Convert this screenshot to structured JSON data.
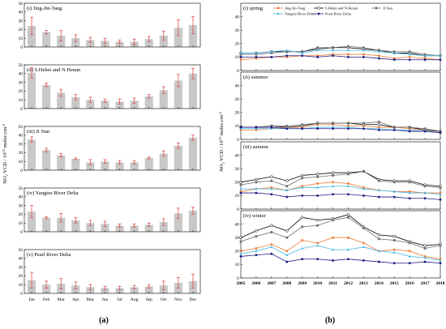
{
  "figure_labels": {
    "a": "(a)",
    "b": "(b)"
  },
  "chart_data": [
    {
      "type": "bar",
      "group": "a",
      "ylabel_parts": {
        "main": "NO",
        "sub": "2",
        "rest": " VCD / 10",
        "sup": "15",
        "unit": " molec.cm",
        "unit_sup": "-2"
      },
      "categories": [
        "Jan",
        "Feb",
        "Mar",
        "Apr",
        "May",
        "Jun",
        "Jul",
        "Aug",
        "Sep",
        "Oct",
        "Nov",
        "Dec"
      ],
      "ylim": [
        0,
        50
      ],
      "yticks": [
        "0",
        "10",
        "20",
        "30",
        "40",
        "50"
      ],
      "bar_color": "#c8c8c8",
      "error_color": "#e05050",
      "panels": [
        {
          "title": "(i) Jing-Jin-Tang",
          "values": [
            24,
            17,
            13,
            10,
            8,
            7,
            6,
            6,
            9,
            13,
            22,
            25
          ],
          "errors": [
            10,
            2,
            6,
            4,
            3,
            3,
            2,
            3,
            3,
            5,
            9,
            10
          ]
        },
        {
          "title": "(ii) S.Hebei and N.Henan",
          "values": [
            41,
            27,
            18,
            13,
            10,
            9,
            8,
            9,
            14,
            21,
            32,
            40
          ],
          "errors": [
            6,
            2,
            4,
            3,
            3,
            2,
            3,
            3,
            2,
            4,
            7,
            6
          ]
        },
        {
          "title": "(iii) Ji Nan",
          "values": [
            35,
            23,
            17,
            13,
            9,
            10,
            9,
            9,
            14,
            19,
            28,
            37
          ],
          "errors": [
            3,
            2,
            2,
            1,
            3,
            2,
            2,
            2,
            1,
            3,
            3,
            3
          ]
        },
        {
          "title": "(iv) Yangtze River Delta",
          "values": [
            23,
            16,
            16,
            13,
            10,
            9,
            7,
            7,
            8,
            11,
            21,
            24
          ],
          "errors": [
            7,
            1,
            5,
            3,
            3,
            3,
            2,
            2,
            2,
            4,
            6,
            4
          ]
        },
        {
          "title": "(v) Pearl River Delta",
          "values": [
            15,
            10,
            11,
            9,
            7,
            6,
            6,
            7,
            8,
            9,
            12,
            14
          ],
          "errors": [
            9,
            4,
            6,
            4,
            3,
            2,
            2,
            2,
            2,
            5,
            6,
            8
          ]
        }
      ]
    },
    {
      "type": "line",
      "group": "b",
      "ylabel_parts": {
        "main": "NO",
        "sub": "2",
        "rest": " VCD / 10",
        "sup": "15",
        "unit": " molec.cm",
        "unit_sup": "-2"
      },
      "x": [
        2005,
        2006,
        2007,
        2008,
        2009,
        2010,
        2011,
        2012,
        2013,
        2014,
        2015,
        2016,
        2017,
        2018
      ],
      "ylim": [
        0,
        50
      ],
      "yticks": [
        "0",
        "10",
        "20",
        "30",
        "40"
      ],
      "legend": [
        {
          "name": "Jing-Jin-Tang",
          "color": "#ef7b34",
          "marker": "circle"
        },
        {
          "name": "S.Hebei and N.Henan",
          "color": "#000000",
          "marker": "open-circle"
        },
        {
          "name": "Ji Nan",
          "color": "#707070",
          "marker": "square"
        },
        {
          "name": "Yangtze River Delta",
          "color": "#4ab8e8",
          "marker": "triangle"
        },
        {
          "name": "Pearl River Delta",
          "color": "#1a1a80",
          "marker": "circle"
        }
      ],
      "panels": [
        {
          "title": "(i) spring",
          "series": [
            {
              "name": "Jing-Jin-Tang",
              "values": [
                8,
                9,
                10,
                10,
                11,
                11,
                12,
                12,
                12,
                11,
                9,
                10,
                9,
                8
              ]
            },
            {
              "name": "S.Hebei and N.Henan",
              "values": [
                13,
                13,
                14,
                14,
                14,
                16,
                17,
                17,
                16,
                15,
                13,
                13,
                11,
                11
              ]
            },
            {
              "name": "Ji Nan",
              "values": [
                12,
                12,
                13,
                14,
                14,
                17,
                17,
                18,
                17,
                15,
                14,
                14,
                12,
                11
              ]
            },
            {
              "name": "Yangtze River Delta",
              "values": [
                13,
                13,
                14,
                15,
                13,
                15,
                15,
                15,
                15,
                14,
                13,
                12,
                11,
                11
              ]
            },
            {
              "name": "Pearl River Delta",
              "values": [
                10,
                10,
                10,
                11,
                11,
                10,
                11,
                10,
                10,
                9,
                8,
                8,
                8,
                8
              ]
            }
          ]
        },
        {
          "title": "(ii) summer",
          "series": [
            {
              "name": "Jing-Jin-Tang",
              "values": [
                7,
                7,
                8,
                9,
                9,
                11,
                11,
                10,
                10,
                9,
                9,
                8,
                7,
                6
              ]
            },
            {
              "name": "S.Hebei and N.Henan",
              "values": [
                9,
                9,
                10,
                9,
                10,
                12,
                12,
                12,
                11,
                11,
                9,
                9,
                7,
                6
              ]
            },
            {
              "name": "Ji Nan",
              "values": [
                9,
                9,
                10,
                10,
                11,
                12,
                12,
                12,
                12,
                13,
                9,
                9,
                8,
                6
              ]
            },
            {
              "name": "Yangtze River Delta",
              "values": [
                8,
                8,
                8,
                8,
                8,
                9,
                9,
                9,
                8,
                8,
                7,
                7,
                6,
                5
              ]
            },
            {
              "name": "Pearl River Delta",
              "values": [
                9,
                9,
                9,
                8,
                8,
                8,
                8,
                8,
                8,
                7,
                7,
                6,
                6,
                5
              ]
            }
          ]
        },
        {
          "title": "(iii) autumn",
          "series": [
            {
              "name": "Jing-Jin-Tang",
              "values": [
                13,
                15,
                16,
                14,
                17,
                19,
                20,
                19,
                16,
                14,
                13,
                13,
                12,
                12
              ]
            },
            {
              "name": "S.Hebei and N.Henan",
              "values": [
                20,
                22,
                24,
                21,
                25,
                26,
                27,
                27,
                28,
                22,
                21,
                21,
                18,
                17
              ]
            },
            {
              "name": "Ji Nan",
              "values": [
                18,
                20,
                21,
                17,
                23,
                24,
                25,
                26,
                28,
                21,
                20,
                20,
                17,
                16
              ]
            },
            {
              "name": "Yangtze River Delta",
              "values": [
                15,
                15,
                15,
                14,
                16,
                16,
                17,
                17,
                15,
                14,
                13,
                12,
                12,
                11
              ]
            },
            {
              "name": "Pearl River Delta",
              "values": [
                12,
                12,
                11,
                9,
                10,
                10,
                11,
                11,
                10,
                9,
                9,
                8,
                8,
                7
              ]
            }
          ]
        },
        {
          "title": "(iv) winter",
          "series": [
            {
              "name": "Jing-Jin-Tang",
              "values": [
                20,
                22,
                25,
                20,
                28,
                26,
                30,
                30,
                26,
                20,
                21,
                20,
                16,
                14
              ]
            },
            {
              "name": "S.Hebei and N.Henan",
              "values": [
                30,
                35,
                39,
                35,
                45,
                43,
                44,
                47,
                38,
                32,
                31,
                27,
                24,
                25
              ]
            },
            {
              "name": "Ji Nan",
              "values": [
                27,
                31,
                34,
                30,
                38,
                39,
                43,
                45,
                37,
                29,
                28,
                26,
                22,
                24
              ]
            },
            {
              "name": "Yangtze River Delta",
              "values": [
                18,
                20,
                23,
                17,
                22,
                24,
                21,
                21,
                23,
                20,
                19,
                16,
                15,
                13
              ]
            },
            {
              "name": "Pearl River Delta",
              "values": [
                16,
                17,
                18,
                12,
                14,
                14,
                13,
                14,
                13,
                12,
                11,
                11,
                12,
                11
              ]
            }
          ]
        }
      ]
    }
  ]
}
